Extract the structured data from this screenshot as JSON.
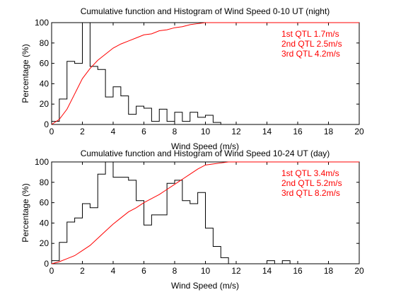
{
  "chart_data": [
    {
      "type": "line",
      "title": "Cumulative function and Histogram of Wind Speed 0-10 UT (night)",
      "xlabel": "Wind Speed (m/s)",
      "ylabel": "Percentage (%)",
      "xlim": [
        0,
        20
      ],
      "ylim": [
        0,
        100
      ],
      "xticks": [
        0,
        2,
        4,
        6,
        8,
        10,
        12,
        14,
        16,
        18,
        20
      ],
      "yticks": [
        0,
        20,
        40,
        60,
        80,
        100
      ],
      "grid": false,
      "histogram": {
        "bin_width": 0.5,
        "bin_starts": [
          0,
          0.5,
          1,
          1.5,
          2,
          2.5,
          3,
          3.5,
          4,
          4.5,
          5,
          5.5,
          6,
          6.5,
          7,
          7.5,
          8,
          8.5,
          9,
          9.5,
          10,
          10.5,
          11
        ],
        "values": [
          3,
          25,
          62,
          60,
          100,
          57,
          54,
          27,
          37,
          28,
          10,
          18,
          16,
          3,
          15,
          3,
          12,
          3,
          12,
          7,
          9,
          2,
          0
        ],
        "color": "#000000"
      },
      "cumulative": {
        "x": [
          0,
          0.5,
          1,
          1.5,
          2,
          2.5,
          3,
          3.5,
          4,
          4.5,
          5,
          5.5,
          6,
          6.5,
          7,
          7.5,
          8,
          8.5,
          9,
          9.5,
          10,
          10.5,
          11
        ],
        "y": [
          0,
          5,
          15,
          30,
          45,
          55,
          63,
          69,
          75,
          79,
          82,
          85,
          88,
          89,
          92,
          93,
          95,
          96,
          98,
          99,
          100,
          100,
          100
        ],
        "color": "#ff0000"
      },
      "annotations": [
        "1st QTL 1.7m/s",
        "2nd QTL 2.5m/s",
        "3rd QTL 4.2m/s"
      ]
    },
    {
      "type": "line",
      "title": "Cumulative function and Histogram of Wind Speed 10-24 UT (day)",
      "xlabel": "Wind Speed (m/s)",
      "ylabel": "Percentage (%)",
      "xlim": [
        0,
        20
      ],
      "ylim": [
        0,
        100
      ],
      "xticks": [
        0,
        2,
        4,
        6,
        8,
        10,
        12,
        14,
        16,
        18,
        20
      ],
      "yticks": [
        0,
        20,
        40,
        60,
        80,
        100
      ],
      "grid": false,
      "histogram": {
        "bin_width": 0.5,
        "bin_starts": [
          0,
          0.5,
          1,
          1.5,
          2,
          2.5,
          3,
          3.5,
          4,
          4.5,
          5,
          5.5,
          6,
          6.5,
          7,
          7.5,
          8,
          8.5,
          9,
          9.5,
          10,
          10.5,
          11,
          11.5,
          12,
          12.5,
          13,
          13.5,
          14,
          14.5,
          15,
          15.5
        ],
        "values": [
          3,
          21,
          41,
          45,
          59,
          55,
          88,
          100,
          85,
          85,
          82,
          62,
          38,
          48,
          48,
          79,
          82,
          62,
          59,
          70,
          35,
          17,
          6,
          0,
          0,
          0,
          0,
          0,
          3,
          0,
          3,
          0
        ],
        "color": "#000000"
      },
      "cumulative": {
        "x": [
          0,
          0.5,
          1,
          1.5,
          2,
          2.5,
          3,
          3.5,
          4,
          4.5,
          5,
          5.5,
          6,
          6.5,
          7,
          7.5,
          8,
          8.5,
          9,
          9.5,
          10,
          10.5,
          11,
          11.5,
          12
        ],
        "y": [
          0,
          2,
          5,
          8,
          13,
          18,
          25,
          32,
          39,
          45,
          51,
          55,
          60,
          64,
          68,
          73,
          78,
          83,
          88,
          93,
          97,
          98,
          99,
          100,
          100
        ],
        "color": "#ff0000"
      },
      "annotations": [
        "1st QTL 3.4m/s",
        "2nd QTL 5.2m/s",
        "3rd QTL 8.2m/s"
      ]
    }
  ]
}
